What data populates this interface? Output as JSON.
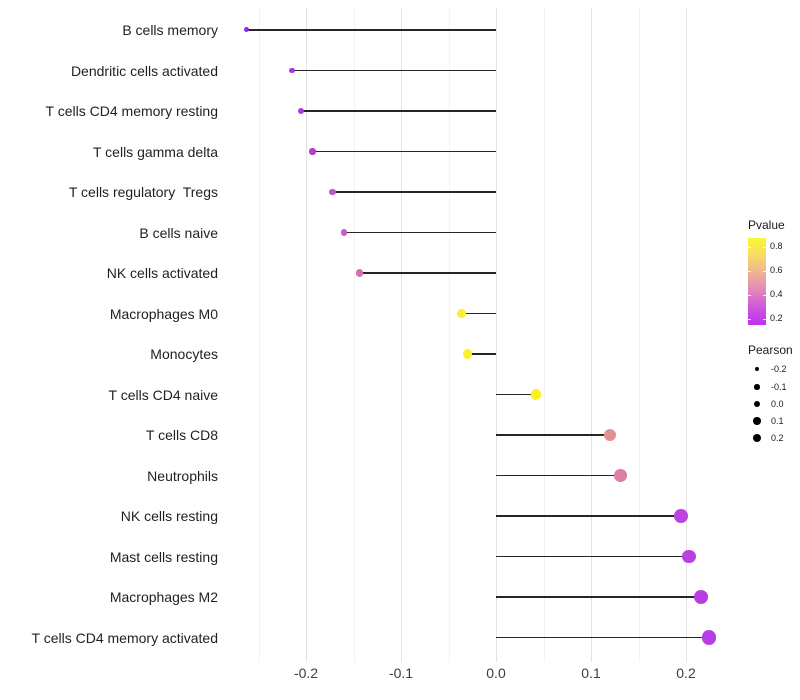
{
  "chart_data": {
    "type": "lollipop",
    "title": "",
    "xlabel": "",
    "ylabel": "",
    "grid": "vertical-only",
    "xlim": [
      -0.287,
      0.248
    ],
    "x_tick_labels": [
      "-0.2",
      "-0.1",
      "0.0",
      "0.1",
      "0.2"
    ],
    "x_tick_values": [
      -0.2,
      -0.1,
      0.0,
      0.1,
      0.2
    ],
    "x_minor_values": [
      -0.25,
      -0.15,
      -0.05,
      0.05,
      0.15
    ],
    "categories": [
      "B cells memory",
      "Dendritic cells activated",
      "T cells CD4 memory resting",
      "T cells gamma delta",
      "T cells regulatory  Tregs",
      "B cells naive",
      "NK cells activated",
      "Macrophages M0",
      "Monocytes",
      "T cells CD4 naive",
      "T cells CD8",
      "Neutrophils",
      "NK cells resting",
      "Mast cells resting",
      "Macrophages M2",
      "T cells CD4 memory activated"
    ],
    "series": [
      {
        "name": "Pearson",
        "values": [
          -0.263,
          -0.215,
          -0.205,
          -0.193,
          -0.172,
          -0.16,
          -0.144,
          -0.036,
          -0.03,
          0.042,
          0.12,
          0.131,
          0.195,
          0.203,
          0.216,
          0.224
        ]
      },
      {
        "name": "Pvalue_estimated_from_color",
        "values": [
          0.16,
          0.28,
          0.29,
          0.31,
          0.37,
          0.4,
          0.45,
          0.83,
          0.84,
          0.86,
          0.55,
          0.48,
          0.24,
          0.22,
          0.21,
          0.2
        ]
      }
    ],
    "rows": [
      {
        "label": "B cells memory",
        "pearson": -0.263,
        "pvalue_est": 0.16,
        "color": "#8A2BE8"
      },
      {
        "label": "Dendritic cells activated",
        "pearson": -0.215,
        "pvalue_est": 0.28,
        "color": "#A937DB"
      },
      {
        "label": "T cells CD4 memory resting",
        "pearson": -0.205,
        "pvalue_est": 0.29,
        "color": "#AC3AD8"
      },
      {
        "label": "T cells gamma delta",
        "pearson": -0.193,
        "pvalue_est": 0.31,
        "color": "#B13ED3"
      },
      {
        "label": "T cells regulatory  Tregs",
        "pearson": -0.172,
        "pvalue_est": 0.37,
        "color": "#C151C8"
      },
      {
        "label": "B cells naive",
        "pearson": -0.16,
        "pvalue_est": 0.4,
        "color": "#C75CC2"
      },
      {
        "label": "NK cells activated",
        "pearson": -0.144,
        "pvalue_est": 0.45,
        "color": "#D170B2"
      },
      {
        "label": "Macrophages M0",
        "pearson": -0.036,
        "pvalue_est": 0.83,
        "color": "#FBEF2D"
      },
      {
        "label": "Monocytes",
        "pearson": -0.03,
        "pvalue_est": 0.84,
        "color": "#FBF129"
      },
      {
        "label": "T cells CD4 naive",
        "pearson": 0.042,
        "pvalue_est": 0.86,
        "color": "#F9F01D"
      },
      {
        "label": "T cells CD8",
        "pearson": 0.12,
        "pvalue_est": 0.55,
        "color": "#E48F93"
      },
      {
        "label": "Neutrophils",
        "pearson": 0.131,
        "pvalue_est": 0.48,
        "color": "#DD7FA4"
      },
      {
        "label": "NK cells resting",
        "pearson": 0.195,
        "pvalue_est": 0.24,
        "color": "#BB44DE"
      },
      {
        "label": "Mast cells resting",
        "pearson": 0.203,
        "pvalue_est": 0.22,
        "color": "#B941E0"
      },
      {
        "label": "Macrophages M2",
        "pearson": 0.216,
        "pvalue_est": 0.21,
        "color": "#B83EE2"
      },
      {
        "label": "T cells CD4 memory activated",
        "pearson": 0.224,
        "pvalue_est": 0.2,
        "color": "#B63CE4"
      }
    ],
    "legend": {
      "pvalue": {
        "title": "Pvalue",
        "tick_labels": [
          "0.8",
          "0.6",
          "0.4",
          "0.2"
        ],
        "domain": [
          0.15,
          0.875
        ],
        "gradient_stops": [
          "#FCF636",
          "#F8DC66",
          "#F0B292",
          "#E287BB",
          "#D055DD",
          "#BD30F2"
        ]
      },
      "pearson": {
        "title": "Pearson",
        "labels": [
          "-0.2",
          "-0.1",
          "0.0",
          "0.1",
          "0.2"
        ]
      }
    }
  },
  "colors": {
    "background": "#ffffff",
    "stem": "#262626",
    "grid_major": "#e4e4e4",
    "grid_minor": "#f2f2f2",
    "axis_text": "#3d3d3d",
    "legend_dot": "#000000"
  }
}
